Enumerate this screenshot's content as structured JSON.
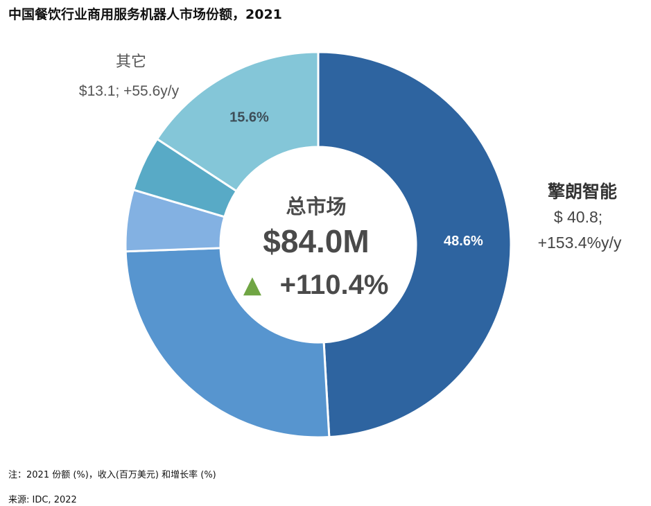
{
  "title": "中国餐饮行业商用服务机器人市场份额，2021",
  "center": {
    "label": "总市场",
    "total": "$84.0M",
    "growth_arrow": "▲",
    "growth": "+110.4%"
  },
  "callouts": {
    "leader": {
      "name": "擎朗智能",
      "value": "$ 40.8;",
      "growth": "+153.4%y/y"
    },
    "others": {
      "name": "其它",
      "value": "$13.1; +55.6y/y"
    }
  },
  "note": "注：2021 份额 (%)，收入(百万美元) 和增长率 (%)",
  "source": "来源: IDC, 2022",
  "colors": {
    "center_text": "#4a4a4a",
    "growth_arrow": "#70a544",
    "callout_gray": "#555555"
  },
  "chart_data": {
    "type": "pie",
    "donut": true,
    "slices": [
      {
        "value": 48.6,
        "label": "48.6%",
        "color": "#2e64a0"
      },
      {
        "value": 25.1,
        "label": "",
        "color": "#5795cf"
      },
      {
        "value": 5.1,
        "label": "",
        "color": "#83b1e2"
      },
      {
        "value": 4.6,
        "label": "",
        "color": "#58aac6"
      },
      {
        "value": 15.6,
        "label": "15.6%",
        "color": "#84c6d8"
      }
    ]
  }
}
